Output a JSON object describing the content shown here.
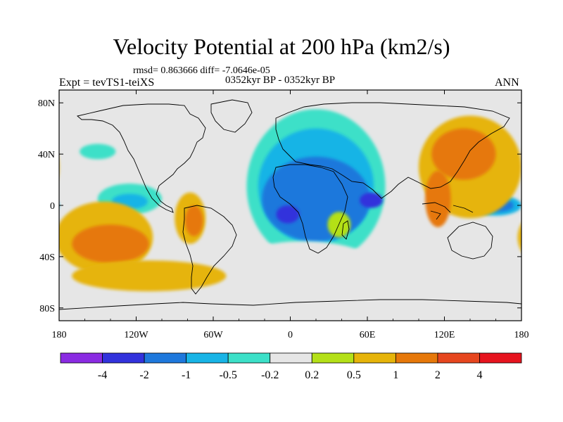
{
  "header": {
    "title": "Velocity Potential at 200 hPa (km2/s)",
    "stats": "rmsd= 0.863666 diff= -7.0646e-05",
    "left_label": "Expt = tevTS1-teiXS",
    "center_label": "0352kyr BP - 0352kyr BP",
    "right_label": "ANN"
  },
  "chart_data": {
    "type": "heatmap",
    "title": "Velocity Potential at 200 hPa (km2/s)",
    "subtitle": "0352kyr BP - 0352kyr BP",
    "projection": "cylindrical-equidistant",
    "xlim": [
      -180,
      180
    ],
    "ylim": [
      -90,
      90
    ],
    "x_ticks": [
      {
        "value": -180,
        "label": "180"
      },
      {
        "value": -120,
        "label": "120W"
      },
      {
        "value": -60,
        "label": "60W"
      },
      {
        "value": 0,
        "label": "0"
      },
      {
        "value": 60,
        "label": "60E"
      },
      {
        "value": 120,
        "label": "120E"
      },
      {
        "value": 180,
        "label": "180"
      }
    ],
    "y_ticks": [
      {
        "value": 80,
        "label": "80N"
      },
      {
        "value": 40,
        "label": "40N"
      },
      {
        "value": 0,
        "label": "0"
      },
      {
        "value": -40,
        "label": "40S"
      },
      {
        "value": -80,
        "label": "80S"
      }
    ],
    "colorbar": {
      "levels": [
        "-4",
        "-2",
        "-1",
        "-0.5",
        "-0.2",
        "0.2",
        "0.5",
        "1",
        "2",
        "4"
      ],
      "colors": [
        "#8a2be2",
        "#3232dc",
        "#1e78dc",
        "#18b4e6",
        "#3ce0c8",
        "#e6e6e6",
        "#b4e018",
        "#e6b40a",
        "#e6780a",
        "#e6461e",
        "#e6141e"
      ]
    },
    "background_class": 5,
    "regions": [
      {
        "name": "atlantic-africa-negative-outer",
        "class": 4,
        "lon": 20,
        "lat": 15,
        "rlon": 54,
        "rlat": 60
      },
      {
        "name": "europe-africa-negative",
        "class": 3,
        "lon": 20,
        "lat": 15,
        "rlon": 45,
        "rlat": 45
      },
      {
        "name": "africa-indian-negative",
        "class": 2,
        "lon": 20,
        "lat": 5,
        "rlon": 42,
        "rlat": 33
      },
      {
        "name": "gulf-of-guinea-min",
        "class": 1,
        "lon": -2,
        "lat": -7,
        "rlon": 9,
        "rlat": 7
      },
      {
        "name": "arabian-sea-min",
        "class": 1,
        "lon": 63,
        "lat": 4,
        "rlon": 9,
        "rlat": 6
      },
      {
        "name": "madagascar-positive",
        "class": 6,
        "lon": 38,
        "lat": -15,
        "rlon": 9,
        "rlat": 10
      },
      {
        "name": "south-atlantic-neutral",
        "class": 5,
        "lon": 10,
        "lat": -50,
        "rlon": 60,
        "rlat": 22
      },
      {
        "name": "east-pacific-negative",
        "class": 4,
        "lon": -125,
        "lat": 5,
        "rlon": 25,
        "rlat": 12
      },
      {
        "name": "east-pacific-min",
        "class": 3,
        "lon": -125,
        "lat": 3,
        "rlon": 14,
        "rlat": 6
      },
      {
        "name": "north-pacific-negative",
        "class": 4,
        "lon": -150,
        "lat": 42,
        "rlon": 14,
        "rlat": 6
      },
      {
        "name": "west-pacific-negative",
        "class": 3,
        "lon": 160,
        "lat": 0,
        "rlon": 20,
        "rlat": 8
      },
      {
        "name": "west-pacific-core",
        "class": 2,
        "lon": 162,
        "lat": 0,
        "rlon": 12,
        "rlat": 5
      },
      {
        "name": "asia-pacific-positive",
        "class": 7,
        "lon": 140,
        "lat": 30,
        "rlon": 40,
        "rlat": 40
      },
      {
        "name": "east-asia-strong-positive",
        "class": 8,
        "lon": 135,
        "lat": 40,
        "rlon": 25,
        "rlat": 20
      },
      {
        "name": "maritime-continent-positive",
        "class": 8,
        "lon": 115,
        "lat": 5,
        "rlon": 10,
        "rlat": 22
      },
      {
        "name": "south-pacific-positive",
        "class": 7,
        "lon": -145,
        "lat": -25,
        "rlon": 38,
        "rlat": 28
      },
      {
        "name": "south-pacific-strong",
        "class": 8,
        "lon": -140,
        "lat": -30,
        "rlon": 30,
        "rlat": 15
      },
      {
        "name": "peru-positive",
        "class": 7,
        "lon": -78,
        "lat": -10,
        "rlon": 12,
        "rlat": 20
      },
      {
        "name": "peru-strong",
        "class": 8,
        "lon": -75,
        "lat": -12,
        "rlon": 7,
        "rlat": 12
      },
      {
        "name": "southern-ocean-positive",
        "class": 7,
        "lon": -110,
        "lat": -55,
        "rlon": 60,
        "rlat": 12
      }
    ]
  }
}
